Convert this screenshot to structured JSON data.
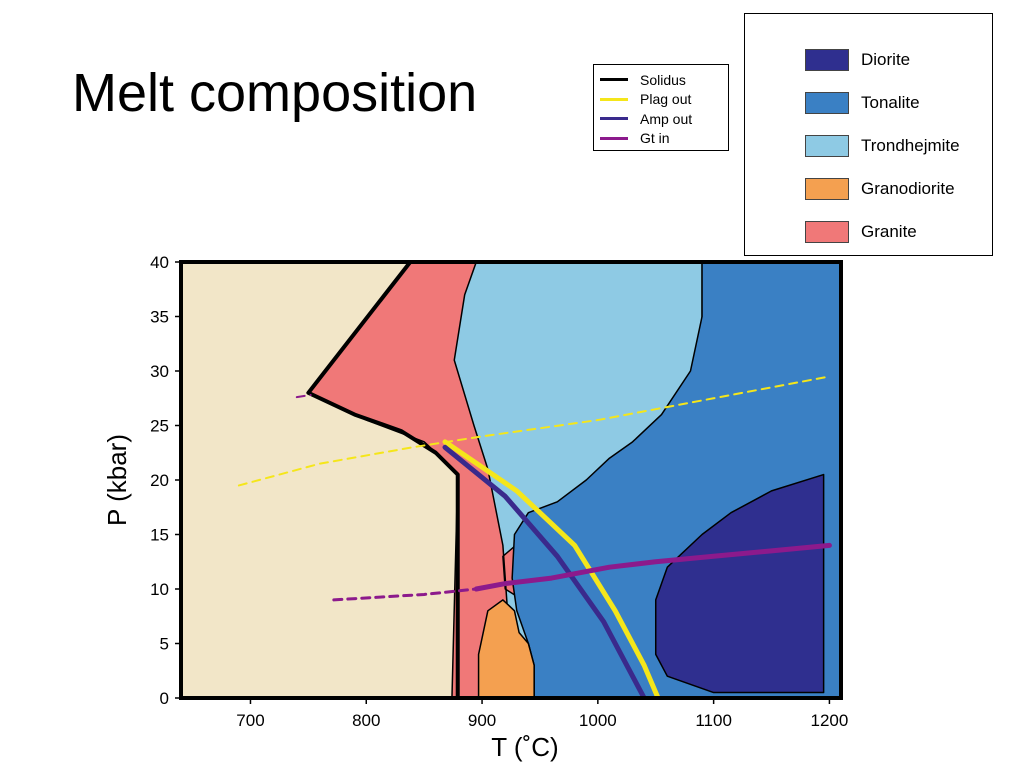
{
  "title": "Melt composition",
  "line_legend": [
    {
      "label": "Solidus",
      "color": "#000000"
    },
    {
      "label": "Plag out",
      "color": "#f5e61a"
    },
    {
      "label": "Amp out",
      "color": "#3a2a8c"
    },
    {
      "label": "Gt in",
      "color": "#8c1a8c"
    }
  ],
  "region_legend": [
    {
      "label": "Diorite",
      "color": "#2f2f8f"
    },
    {
      "label": "Tonalite",
      "color": "#3a80c4"
    },
    {
      "label": "Trondhejmite",
      "color": "#8ecae4"
    },
    {
      "label": "Granodiorite",
      "color": "#f4a050"
    },
    {
      "label": "Granite",
      "color": "#f07878"
    }
  ],
  "chart_data": {
    "type": "area",
    "xlabel": "T (˚C)",
    "ylabel": "P (kbar)",
    "xlim": [
      640,
      1210
    ],
    "ylim": [
      0,
      40
    ],
    "x_ticks": [
      "700",
      "800",
      "900",
      "1000",
      "1100",
      "1200"
    ],
    "y_ticks": [
      "0",
      "5",
      "10",
      "15",
      "20",
      "25",
      "30",
      "35",
      "40"
    ],
    "background_color": "#f2e6c8",
    "regions": [
      {
        "name": "Granite",
        "color": "#f07878",
        "points": [
          [
            750,
            28
          ],
          [
            838,
            40
          ],
          [
            1210,
            40
          ],
          [
            1210,
            0
          ],
          [
            874,
            0
          ],
          [
            879,
            20.6
          ],
          [
            850,
            23.5
          ],
          [
            800,
            25.5
          ]
        ]
      },
      {
        "name": "Trondhejmite",
        "color": "#8ecae4",
        "points": [
          [
            895,
            40
          ],
          [
            1090,
            40
          ],
          [
            1090,
            33
          ],
          [
            1088,
            28
          ],
          [
            1075,
            23
          ],
          [
            1050,
            21
          ],
          [
            1025,
            19
          ],
          [
            970,
            17
          ],
          [
            940,
            15
          ],
          [
            918,
            13
          ],
          [
            920,
            10
          ],
          [
            935,
            9
          ],
          [
            980,
            9
          ],
          [
            1210,
            9
          ],
          [
            1210,
            0
          ],
          [
            990,
            0
          ],
          [
            945,
            0
          ],
          [
            940,
            4
          ],
          [
            922,
            8
          ],
          [
            918,
            14
          ],
          [
            905,
            21
          ],
          [
            893,
            25
          ],
          [
            876,
            31
          ],
          [
            885,
            37
          ]
        ]
      },
      {
        "name": "Tonalite",
        "color": "#3a80c4",
        "points": [
          [
            1090,
            40
          ],
          [
            1210,
            40
          ],
          [
            1210,
            0
          ],
          [
            945,
            0
          ],
          [
            945,
            3
          ],
          [
            940,
            5
          ],
          [
            930,
            8
          ],
          [
            926,
            11
          ],
          [
            928,
            15
          ],
          [
            940,
            17
          ],
          [
            965,
            18
          ],
          [
            990,
            20
          ],
          [
            1010,
            22
          ],
          [
            1030,
            23.5
          ],
          [
            1055,
            26
          ],
          [
            1080,
            30
          ],
          [
            1090,
            35
          ]
        ]
      },
      {
        "name": "Granodiorite",
        "color": "#f4a050",
        "points": [
          [
            897,
            0
          ],
          [
            945,
            0
          ],
          [
            945,
            3
          ],
          [
            940,
            5
          ],
          [
            932,
            6
          ],
          [
            928,
            8
          ],
          [
            918,
            9
          ],
          [
            905,
            8
          ],
          [
            897,
            4
          ]
        ]
      },
      {
        "name": "Diorite",
        "color": "#2f2f8f",
        "points": [
          [
            1050,
            9
          ],
          [
            1060,
            12
          ],
          [
            1090,
            15
          ],
          [
            1115,
            17
          ],
          [
            1150,
            19
          ],
          [
            1195,
            20.5
          ],
          [
            1195,
            0.5
          ],
          [
            1100,
            0.5
          ],
          [
            1060,
            2
          ],
          [
            1050,
            4
          ]
        ]
      }
    ],
    "lines": [
      {
        "name": "Solidus",
        "color": "#000000",
        "width": 4,
        "dash": false,
        "points": [
          [
            838,
            40
          ],
          [
            750,
            28
          ],
          [
            790,
            26
          ],
          [
            830,
            24.5
          ],
          [
            860,
            22.5
          ],
          [
            879,
            20.5
          ],
          [
            879,
            0
          ]
        ]
      },
      {
        "name": "Plag out",
        "color": "#f5e61a",
        "width": 5,
        "dash": false,
        "points": [
          [
            868,
            23.5
          ],
          [
            930,
            19
          ],
          [
            980,
            14
          ],
          [
            1015,
            8
          ],
          [
            1040,
            3
          ],
          [
            1052,
            0
          ]
        ]
      },
      {
        "name": "Amp out",
        "color": "#3a2a8c",
        "width": 5,
        "dash": false,
        "points": [
          [
            868,
            23
          ],
          [
            920,
            18.5
          ],
          [
            965,
            13
          ],
          [
            1005,
            7
          ],
          [
            1030,
            2
          ],
          [
            1040,
            0
          ]
        ]
      },
      {
        "name": "Gt in",
        "color": "#8c1a8c",
        "width": 5,
        "dash": false,
        "points": [
          [
            895,
            10
          ],
          [
            920,
            10.5
          ],
          [
            960,
            11
          ],
          [
            1010,
            12
          ],
          [
            1050,
            12.5
          ],
          [
            1100,
            13
          ],
          [
            1150,
            13.5
          ],
          [
            1200,
            14
          ]
        ]
      },
      {
        "name": "Plag out (extrapolated)",
        "color": "#f5e61a",
        "width": 2,
        "dash": true,
        "points": [
          [
            690,
            19.5
          ],
          [
            760,
            21.5
          ],
          [
            840,
            23
          ],
          [
            900,
            24
          ],
          [
            1000,
            25.5
          ],
          [
            1100,
            27.5
          ],
          [
            1200,
            29.5
          ]
        ]
      },
      {
        "name": "Gt in (extrapolated)",
        "color": "#8c1a8c",
        "width": 3,
        "dash": true,
        "points": [
          [
            772,
            9
          ],
          [
            850,
            9.5
          ],
          [
            895,
            10
          ]
        ]
      },
      {
        "name": "Solidus (extrapolated)",
        "color": "#8c1a8c",
        "width": 2,
        "dash": true,
        "points": [
          [
            740,
            27.6
          ],
          [
            752,
            27.8
          ]
        ]
      }
    ]
  }
}
